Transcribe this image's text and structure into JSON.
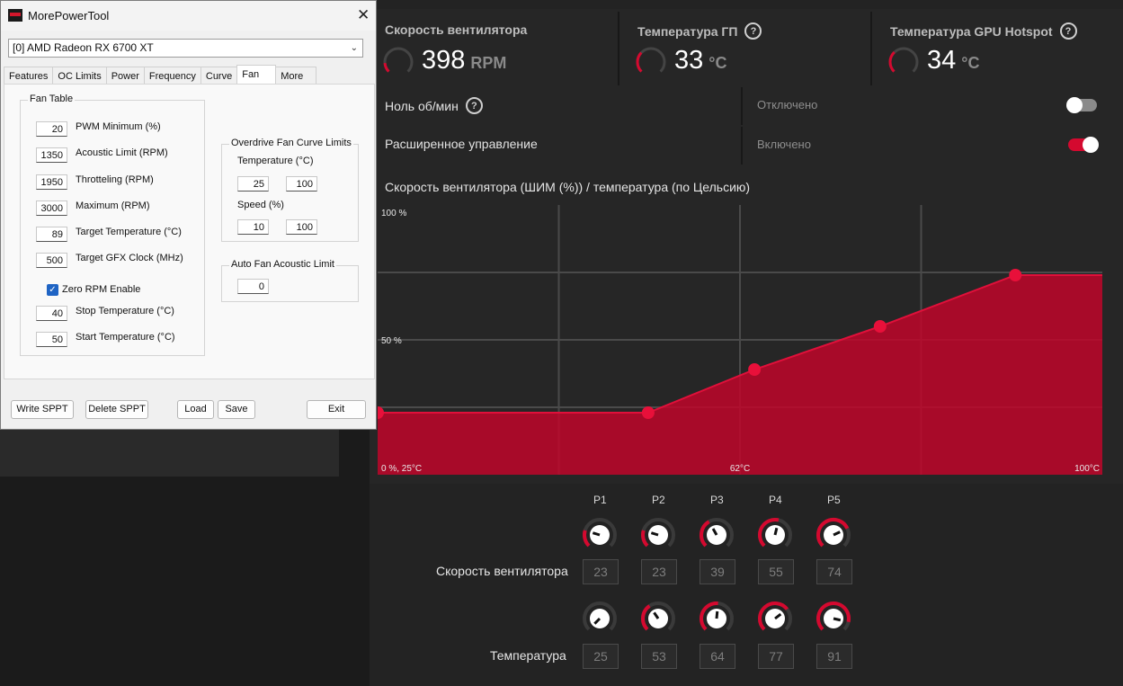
{
  "amd": {
    "stats": [
      {
        "title": "Скорость вентилятора",
        "value": "398",
        "unit": "RPM",
        "help": false,
        "gauge_level": 0.15
      },
      {
        "title": "Температура ГП",
        "value": "33",
        "unit": "°C",
        "help": true,
        "gauge_level": 0.33
      },
      {
        "title": "Температура GPU Hotspot",
        "value": "34",
        "unit": "°C",
        "help": true,
        "gauge_level": 0.34
      }
    ],
    "zero_rpm": {
      "label": "Ноль об/мин",
      "state": "Отключено",
      "on": false
    },
    "advanced": {
      "label": "Расширенное управление",
      "state": "Включено",
      "on": true
    },
    "chart_title": "Скорость вентилятора (ШИМ (%)) / температура (по Цельсию)",
    "accent": "#d4092f",
    "knobs": {
      "point_labels": [
        "P1",
        "P2",
        "P3",
        "P4",
        "P5"
      ],
      "speed_label": "Скорость вентилятора",
      "speed_values": [
        "23",
        "23",
        "39",
        "55",
        "74"
      ],
      "temp_label": "Температура",
      "temp_values": [
        "25",
        "53",
        "64",
        "77",
        "91"
      ]
    }
  },
  "chart_data": {
    "type": "area",
    "x": [
      25,
      53,
      64,
      77,
      91
    ],
    "y": [
      23,
      23,
      39,
      55,
      74
    ],
    "xlim": [
      25,
      100
    ],
    "ylim": [
      0,
      100
    ],
    "x_tick_labels": [
      "0 %, 25°C",
      "62°C",
      "100°C"
    ],
    "y_tick_labels": [
      "100 %",
      "50 %"
    ],
    "grid": true,
    "color": "#c0062a"
  },
  "mpt": {
    "title": "MorePowerTool",
    "gpu": "[0] AMD Radeon RX 6700 XT",
    "tabs": [
      "Features",
      "OC Limits",
      "Power",
      "Frequency",
      "Curve",
      "Fan",
      "More"
    ],
    "active_tab": "Fan",
    "fan_table": {
      "title": "Fan Table",
      "fields": [
        {
          "value": "20",
          "label": "PWM Minimum (%)"
        },
        {
          "value": "1350",
          "label": "Acoustic Limit (RPM)"
        },
        {
          "value": "1950",
          "label": "Throtteling (RPM)"
        },
        {
          "value": "3000",
          "label": "Maximum (RPM)"
        },
        {
          "value": "89",
          "label": "Target Temperature (°C)"
        },
        {
          "value": "500",
          "label": "Target GFX Clock (MHz)"
        }
      ],
      "zero_rpm": {
        "label": "Zero RPM Enable",
        "checked": true
      },
      "stop_temp": {
        "value": "40",
        "label": "Stop Temperature (°C)"
      },
      "start_temp": {
        "value": "50",
        "label": "Start Temperature (°C)"
      }
    },
    "od_limits": {
      "title": "Overdrive Fan Curve Limits",
      "temp_label": "Temperature (°C)",
      "temp_min": "25",
      "temp_max": "100",
      "speed_label": "Speed (%)",
      "speed_min": "10",
      "speed_max": "100"
    },
    "acoustic": {
      "title": "Auto Fan Acoustic Limit",
      "value": "0"
    },
    "buttons": {
      "write": "Write SPPT",
      "delete": "Delete SPPT",
      "load": "Load",
      "save": "Save",
      "exit": "Exit"
    }
  }
}
